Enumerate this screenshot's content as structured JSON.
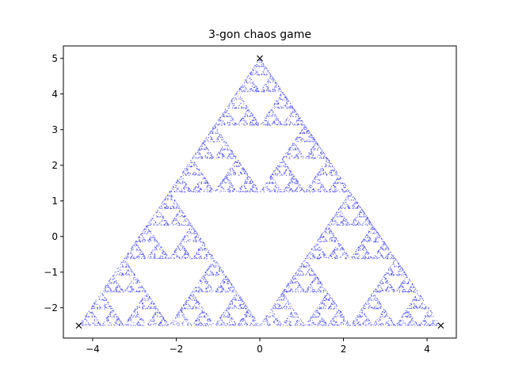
{
  "chart_data": {
    "type": "scatter",
    "title": "3-gon chaos game",
    "xlabel": "",
    "ylabel": "",
    "xlim": [
      -4.7,
      4.7
    ],
    "ylim": [
      -2.85,
      5.35
    ],
    "grid": false,
    "xticks": [
      -4,
      -2,
      0,
      2,
      4
    ],
    "xtick_labels": [
      "−4",
      "−2",
      "0",
      "2",
      "4"
    ],
    "yticks": [
      -2,
      -1,
      0,
      1,
      2,
      3,
      4,
      5
    ],
    "ytick_labels": [
      "−2",
      "−1",
      "0",
      "1",
      "2",
      "3",
      "4",
      "5"
    ],
    "vertices": {
      "x": [
        0,
        -4.33,
        4.33
      ],
      "y": [
        5,
        -2.5,
        -2.5
      ],
      "marker": "x",
      "color": "#000000"
    },
    "series": [
      {
        "kind": "chaos-game-points",
        "color": "#0000ff",
        "marker": "point"
      }
    ]
  }
}
